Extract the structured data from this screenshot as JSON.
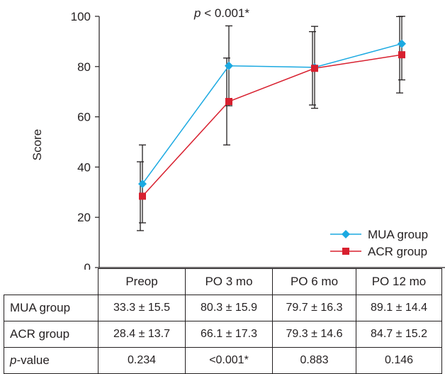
{
  "chart_data": {
    "type": "line",
    "categories": [
      "Preop",
      "PO 3 mo",
      "PO 6 mo",
      "PO 12 mo"
    ],
    "series": [
      {
        "name": "MUA group",
        "values": [
          33.3,
          80.3,
          79.7,
          89.1
        ],
        "sd": [
          15.5,
          15.9,
          16.3,
          14.4
        ],
        "color": "#1ba9e1",
        "marker": "diamond"
      },
      {
        "name": "ACR group",
        "values": [
          28.4,
          66.1,
          79.3,
          84.7
        ],
        "sd": [
          13.7,
          17.3,
          14.6,
          15.2
        ],
        "color": "#d8202f",
        "marker": "square"
      }
    ],
    "ylabel": "Score",
    "ylim": [
      0,
      100
    ],
    "yticks": [
      "0",
      "20",
      "40",
      "60",
      "80",
      "100"
    ],
    "annotation": {
      "prefix": "p",
      "text": " < 0.001*"
    },
    "legend_position": "bottom-right",
    "grid": false
  },
  "table": {
    "headers": [
      "Preop",
      "PO 3 mo",
      "PO 6 mo",
      "PO 12 mo"
    ],
    "rows": [
      {
        "label": "MUA group",
        "cells": [
          "33.3 ± 15.5",
          "80.3 ± 15.9",
          "79.7 ± 16.3",
          "89.1 ± 14.4"
        ]
      },
      {
        "label": "ACR group",
        "cells": [
          "28.4 ± 13.7",
          "66.1 ± 17.3",
          "79.3 ± 14.6",
          "84.7 ± 15.2"
        ]
      }
    ],
    "pvalue_row": {
      "label_prefix": "p",
      "label_suffix": "-value",
      "cells": [
        "0.234",
        "<0.001*",
        "0.883",
        "0.146"
      ]
    }
  }
}
